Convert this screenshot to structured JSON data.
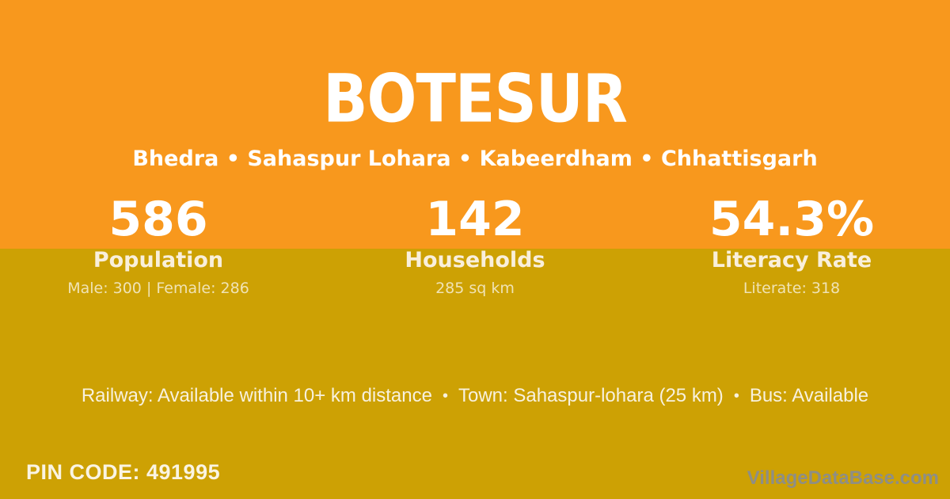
{
  "header": {
    "village_name": "BOTESUR",
    "breadcrumb": "Bhedra • Sahaspur Lohara • Kabeerdham • Chhattisgarh"
  },
  "stats": [
    {
      "value": "586",
      "label": "Population",
      "detail": "Male: 300 | Female: 286"
    },
    {
      "value": "142",
      "label": "Households",
      "detail": "285 sq km"
    },
    {
      "value": "54.3%",
      "label": "Literacy Rate",
      "detail": "Literate: 318"
    }
  ],
  "transport": {
    "segments": [
      "Railway: Available within 10+ km distance",
      "Town: Sahaspur-lohara (25 km)",
      "Bus: Available"
    ],
    "separator": "•"
  },
  "footer": {
    "pin_code": "PIN CODE: 491995",
    "watermark": "VillageDataBase.com"
  },
  "colors": {
    "orange_band": "#F8981D",
    "gold_band": "#CDA104",
    "number_white": "#FFFFFF",
    "label_cream": "#F9EFDB",
    "detail_cream": "#F0E3B5",
    "watermark_gray": "#8E8E86"
  }
}
